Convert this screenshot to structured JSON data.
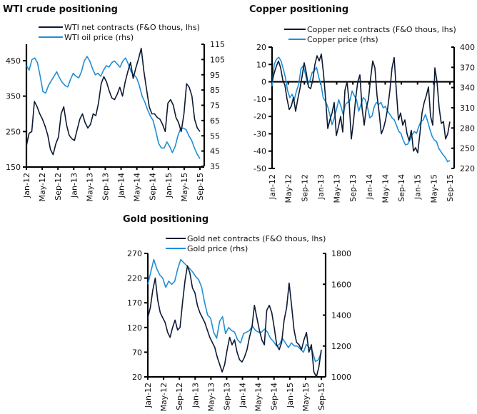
{
  "chart_data": [
    {
      "id": "wti",
      "type": "line",
      "title": "WTI crude positioning",
      "x_tick_labels": [
        "Jan-12",
        "May-12",
        "Sep-12",
        "Jan-13",
        "May-13",
        "Sep-13",
        "Jan-14",
        "May-14",
        "Sep-14",
        "Jan-15",
        "May-15",
        "Sep-15"
      ],
      "x_start": "Jan-12",
      "x_end": "Sep-15",
      "left_axis": {
        "ylim": [
          150,
          450
        ],
        "ticks": [
          150,
          250,
          350,
          450
        ]
      },
      "right_axis": {
        "ylim": [
          35,
          115
        ],
        "ticks": [
          35,
          45,
          55,
          65,
          75,
          85,
          95,
          105,
          115
        ]
      },
      "zero_line": false,
      "colors": {
        "net": "#0d1a33",
        "price": "#1f8fd6"
      },
      "legend_placement": "top",
      "series": [
        {
          "name": "WTI net contracts (F&O thous, lhs)",
          "axis": "left",
          "key": "net",
          "values": [
            210,
            245,
            250,
            335,
            320,
            300,
            285,
            265,
            240,
            200,
            185,
            215,
            235,
            300,
            320,
            270,
            240,
            230,
            225,
            255,
            285,
            300,
            275,
            260,
            270,
            300,
            295,
            330,
            385,
            405,
            390,
            365,
            345,
            340,
            355,
            375,
            350,
            390,
            420,
            445,
            400,
            430,
            455,
            485,
            420,
            370,
            320,
            300,
            300,
            290,
            285,
            270,
            250,
            330,
            340,
            325,
            290,
            275,
            250,
            300,
            385,
            375,
            350,
            285,
            260,
            250
          ]
        },
        {
          "name": "WTI oil price (rhs)",
          "axis": "right",
          "key": "price",
          "values": [
            101,
            98,
            105,
            106,
            103,
            94,
            84,
            83,
            88,
            91,
            94,
            97,
            93,
            90,
            88,
            87,
            92,
            96,
            94,
            93,
            97,
            104,
            107,
            104,
            99,
            95,
            96,
            94,
            98,
            101,
            100,
            103,
            104,
            102,
            100,
            104,
            106,
            102,
            97,
            95,
            93,
            88,
            81,
            77,
            72,
            68,
            65,
            58,
            50,
            47,
            47,
            51,
            48,
            44,
            48,
            55,
            60,
            60,
            59,
            55,
            52,
            47,
            43,
            40
          ]
        }
      ]
    },
    {
      "id": "copper",
      "type": "line",
      "title": "Copper positioning",
      "x_tick_labels": [
        "Jan-12",
        "May-12",
        "Sep-12",
        "Jan-13",
        "May-13",
        "Sep-13",
        "Jan-14",
        "May-14",
        "Sep-14",
        "Jan-15",
        "May-15",
        "Sep-15"
      ],
      "x_start": "Jan-12",
      "x_end": "Sep-15",
      "left_axis": {
        "ylim": [
          -50,
          20
        ],
        "ticks": [
          -50,
          -40,
          -30,
          -20,
          -10,
          0,
          10,
          20
        ]
      },
      "right_axis": {
        "ylim": [
          220,
          400
        ],
        "ticks": [
          220,
          250,
          280,
          310,
          340,
          370,
          400
        ]
      },
      "zero_line": true,
      "colors": {
        "net": "#0d1a33",
        "price": "#1f8fd6"
      },
      "legend_placement": "top",
      "series": [
        {
          "name": "Copper net contracts (F&O thous, lhs)",
          "axis": "left",
          "key": "net",
          "values": [
            0,
            5,
            9,
            12,
            8,
            1,
            -2,
            -10,
            -16,
            -14,
            -9,
            -17,
            -10,
            -4,
            3,
            11,
            5,
            -3,
            -4,
            1,
            10,
            15,
            12,
            16,
            5,
            -10,
            -27,
            -22,
            -18,
            -12,
            -31,
            -26,
            -20,
            -29,
            -5,
            0,
            -12,
            -33,
            -23,
            -10,
            0,
            4,
            -15,
            -25,
            -15,
            -10,
            2,
            12,
            8,
            -8,
            -18,
            -30,
            -27,
            -22,
            -15,
            -5,
            8,
            14,
            -5,
            -22,
            -18,
            -25,
            -22,
            -30,
            -34,
            -28,
            -40,
            -38,
            -41,
            -30,
            -18,
            -12,
            -8,
            -3,
            -20,
            -25,
            8,
            0,
            -15,
            -24,
            -23,
            -33,
            -30,
            -23
          ]
        },
        {
          "name": "Copper price (rhs)",
          "axis": "right",
          "key": "price",
          "values": [
            342,
            375,
            382,
            385,
            380,
            368,
            355,
            335,
            325,
            330,
            322,
            335,
            345,
            368,
            372,
            360,
            345,
            350,
            362,
            365,
            370,
            355,
            345,
            325,
            320,
            312,
            300,
            285,
            295,
            308,
            322,
            312,
            300,
            315,
            318,
            320,
            335,
            328,
            322,
            305,
            315,
            325,
            322,
            310,
            295,
            298,
            312,
            318,
            315,
            318,
            310,
            312,
            305,
            300,
            295,
            292,
            284,
            275,
            272,
            262,
            255,
            256,
            262,
            270,
            275,
            272,
            282,
            290,
            292,
            300,
            290,
            278,
            268,
            262,
            260,
            250,
            245,
            240,
            236,
            230,
            232
          ]
        }
      ]
    },
    {
      "id": "gold",
      "type": "line",
      "title": "Gold positioning",
      "x_tick_labels": [
        "Jan-12",
        "May-12",
        "Sep-12",
        "Jan-13",
        "May-13",
        "Sep-13",
        "Jan-14",
        "May-14",
        "Sep-14",
        "Jan-15",
        "May-15",
        "Sep-15"
      ],
      "x_start": "Jan-12",
      "x_end": "Sep-15",
      "left_axis": {
        "ylim": [
          20,
          270
        ],
        "ticks": [
          20,
          70,
          120,
          170,
          220,
          270
        ]
      },
      "right_axis": {
        "ylim": [
          1000,
          1800
        ],
        "ticks": [
          1000,
          1200,
          1400,
          1600,
          1800
        ]
      },
      "zero_line": false,
      "colors": {
        "net": "#0d1a33",
        "price": "#1f8fd6"
      },
      "legend_placement": "top",
      "series": [
        {
          "name": "Gold net contracts (F&O thous, lhs)",
          "axis": "left",
          "key": "net",
          "values": [
            140,
            160,
            195,
            220,
            175,
            150,
            140,
            130,
            110,
            100,
            120,
            135,
            115,
            120,
            170,
            215,
            245,
            230,
            200,
            190,
            165,
            150,
            140,
            130,
            115,
            100,
            90,
            80,
            60,
            45,
            30,
            45,
            75,
            100,
            85,
            95,
            70,
            55,
            50,
            60,
            75,
            100,
            120,
            165,
            140,
            115,
            95,
            85,
            155,
            165,
            150,
            120,
            85,
            75,
            90,
            135,
            160,
            210,
            165,
            115,
            90,
            85,
            75,
            95,
            110,
            70,
            85,
            30,
            20,
            40,
            75
          ]
        },
        {
          "name": "Gold price (rhs)",
          "axis": "right",
          "key": "price",
          "values": [
            1600,
            1680,
            1760,
            1700,
            1660,
            1640,
            1580,
            1620,
            1600,
            1620,
            1700,
            1760,
            1740,
            1720,
            1700,
            1680,
            1650,
            1630,
            1580,
            1480,
            1400,
            1380,
            1290,
            1250,
            1360,
            1390,
            1280,
            1320,
            1300,
            1290,
            1240,
            1220,
            1280,
            1290,
            1300,
            1330,
            1300,
            1290,
            1290,
            1310,
            1290,
            1250,
            1230,
            1200,
            1210,
            1250,
            1220,
            1190,
            1220,
            1200,
            1200,
            1180,
            1160,
            1210,
            1190,
            1170,
            1100,
            1110,
            1160
          ]
        }
      ]
    }
  ]
}
